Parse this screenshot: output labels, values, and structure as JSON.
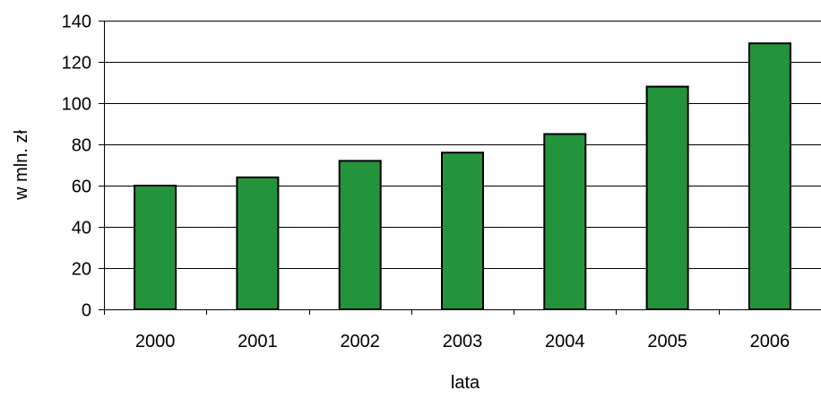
{
  "chart_data": {
    "type": "bar",
    "categories": [
      "2000",
      "2001",
      "2002",
      "2003",
      "2004",
      "2005",
      "2006"
    ],
    "values": [
      60,
      64,
      72,
      76,
      85,
      108,
      129
    ],
    "title": "",
    "xlabel": "lata",
    "ylabel": "w mln. zł",
    "ylim": [
      0,
      140
    ],
    "yticks": [
      0,
      20,
      40,
      60,
      80,
      100,
      120,
      140
    ],
    "grid": true,
    "legend": "none",
    "bar_color": "#24943c",
    "bar_edge_color": "#000000",
    "grid_color": "#000000"
  }
}
